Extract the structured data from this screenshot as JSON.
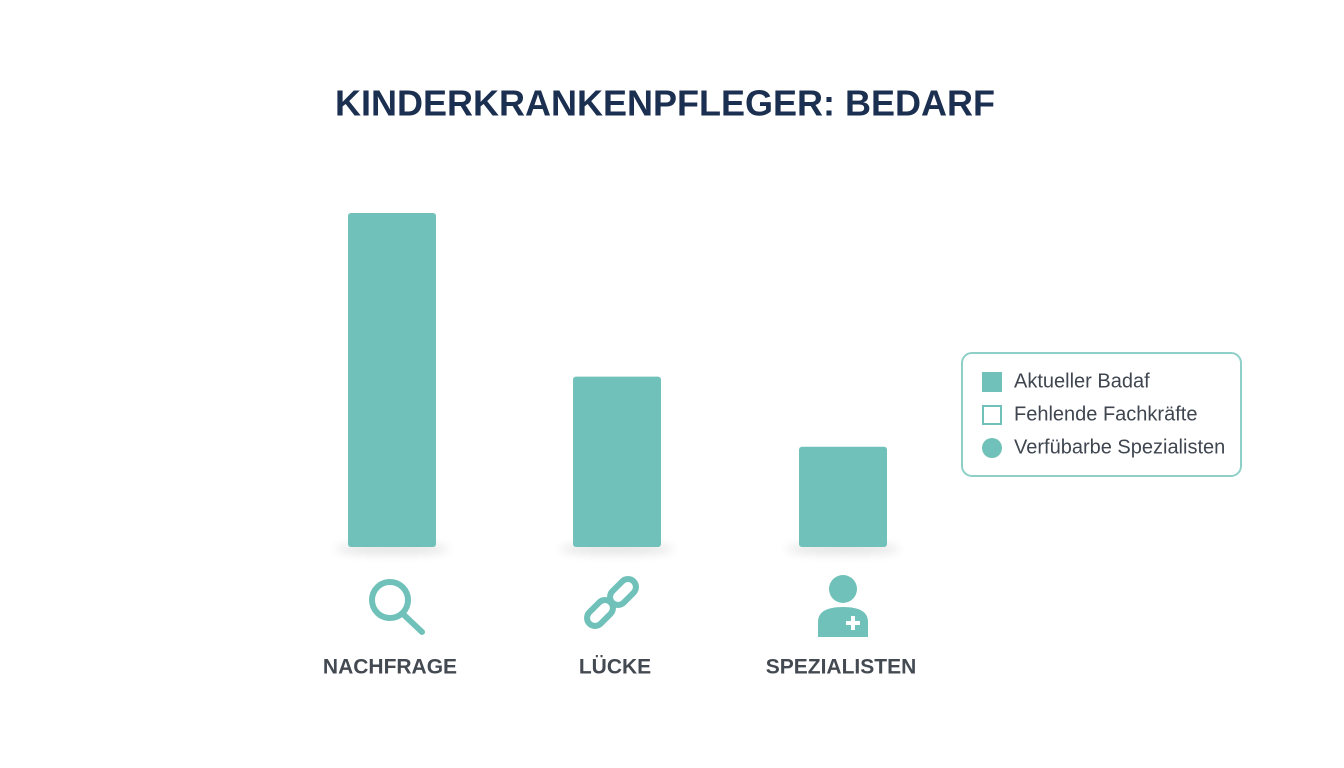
{
  "chart_data": {
    "type": "bar",
    "title": "KINDERKRANKENPFLEGER: BEDARF",
    "categories": [
      "NACHFRAGE",
      "LÜCKE",
      "SPEZIALISTEN"
    ],
    "values": [
      100,
      51,
      30
    ],
    "color": "#6fc1b9",
    "ylim": [
      0,
      100
    ],
    "legend": [
      {
        "label": "Aktueller Badaf",
        "marker": "square"
      },
      {
        "label": "Fehlende Fachkräfte",
        "marker": "square-outline"
      },
      {
        "label": "Verfübarbe Spezialisten",
        "marker": "circle"
      }
    ]
  }
}
